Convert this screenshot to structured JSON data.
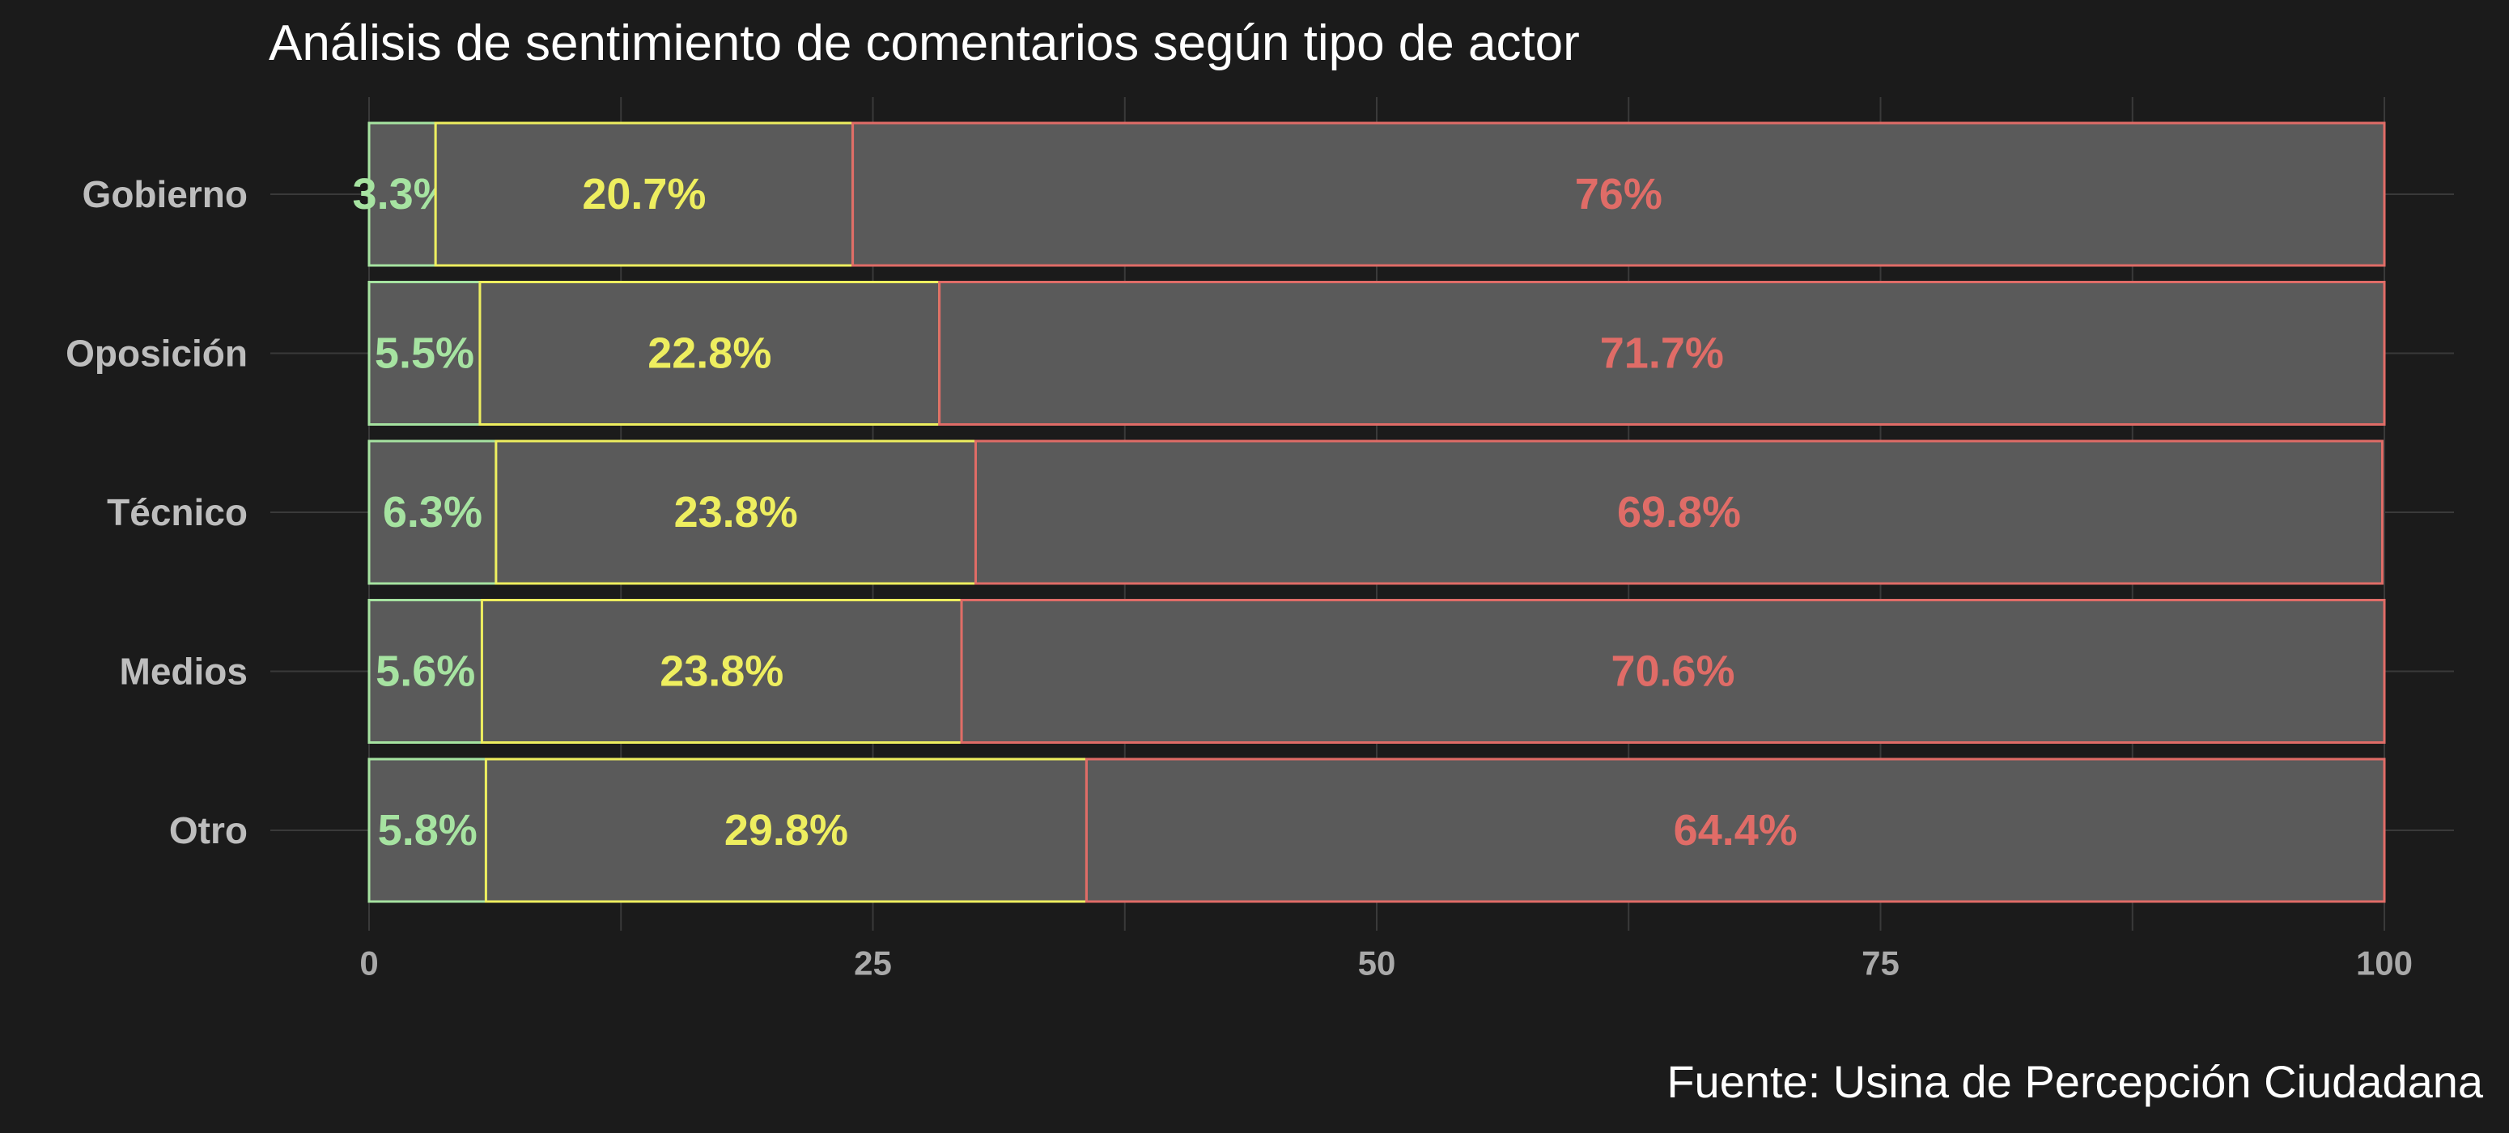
{
  "chart_data": {
    "type": "bar",
    "orientation": "horizontal",
    "stacked": true,
    "title": "Análisis de sentimiento de comentarios según tipo de actor",
    "caption": "Fuente: Usina de Percepción Ciudadana",
    "categories": [
      "Gobierno",
      "Oposición",
      "Técnico",
      "Medios",
      "Otro"
    ],
    "xlim": [
      0,
      100
    ],
    "x_ticks": [
      "0",
      "25",
      "50",
      "75",
      "100"
    ],
    "grid": true,
    "legend": "none",
    "series": [
      {
        "values": [
          3.3,
          5.5,
          6.3,
          5.6,
          5.8
        ],
        "labels": [
          "3.3%",
          "5.5%",
          "6.3%",
          "5.6%",
          "5.8%"
        ],
        "color": "#a6e3a1"
      },
      {
        "values": [
          20.7,
          22.8,
          23.8,
          23.8,
          29.8
        ],
        "labels": [
          "20.7%",
          "22.8%",
          "23.8%",
          "23.8%",
          "29.8%"
        ],
        "color": "#eeee5f"
      },
      {
        "values": [
          76,
          71.7,
          69.8,
          70.6,
          64.4
        ],
        "labels": [
          "76%",
          "71.7%",
          "69.8%",
          "70.6%",
          "64.4%"
        ],
        "color": "#e06c67"
      }
    ]
  },
  "colors": {
    "background": "#1b1b1b",
    "bar_fill": "#5a5a5a",
    "grid": "#3a3a3a"
  }
}
